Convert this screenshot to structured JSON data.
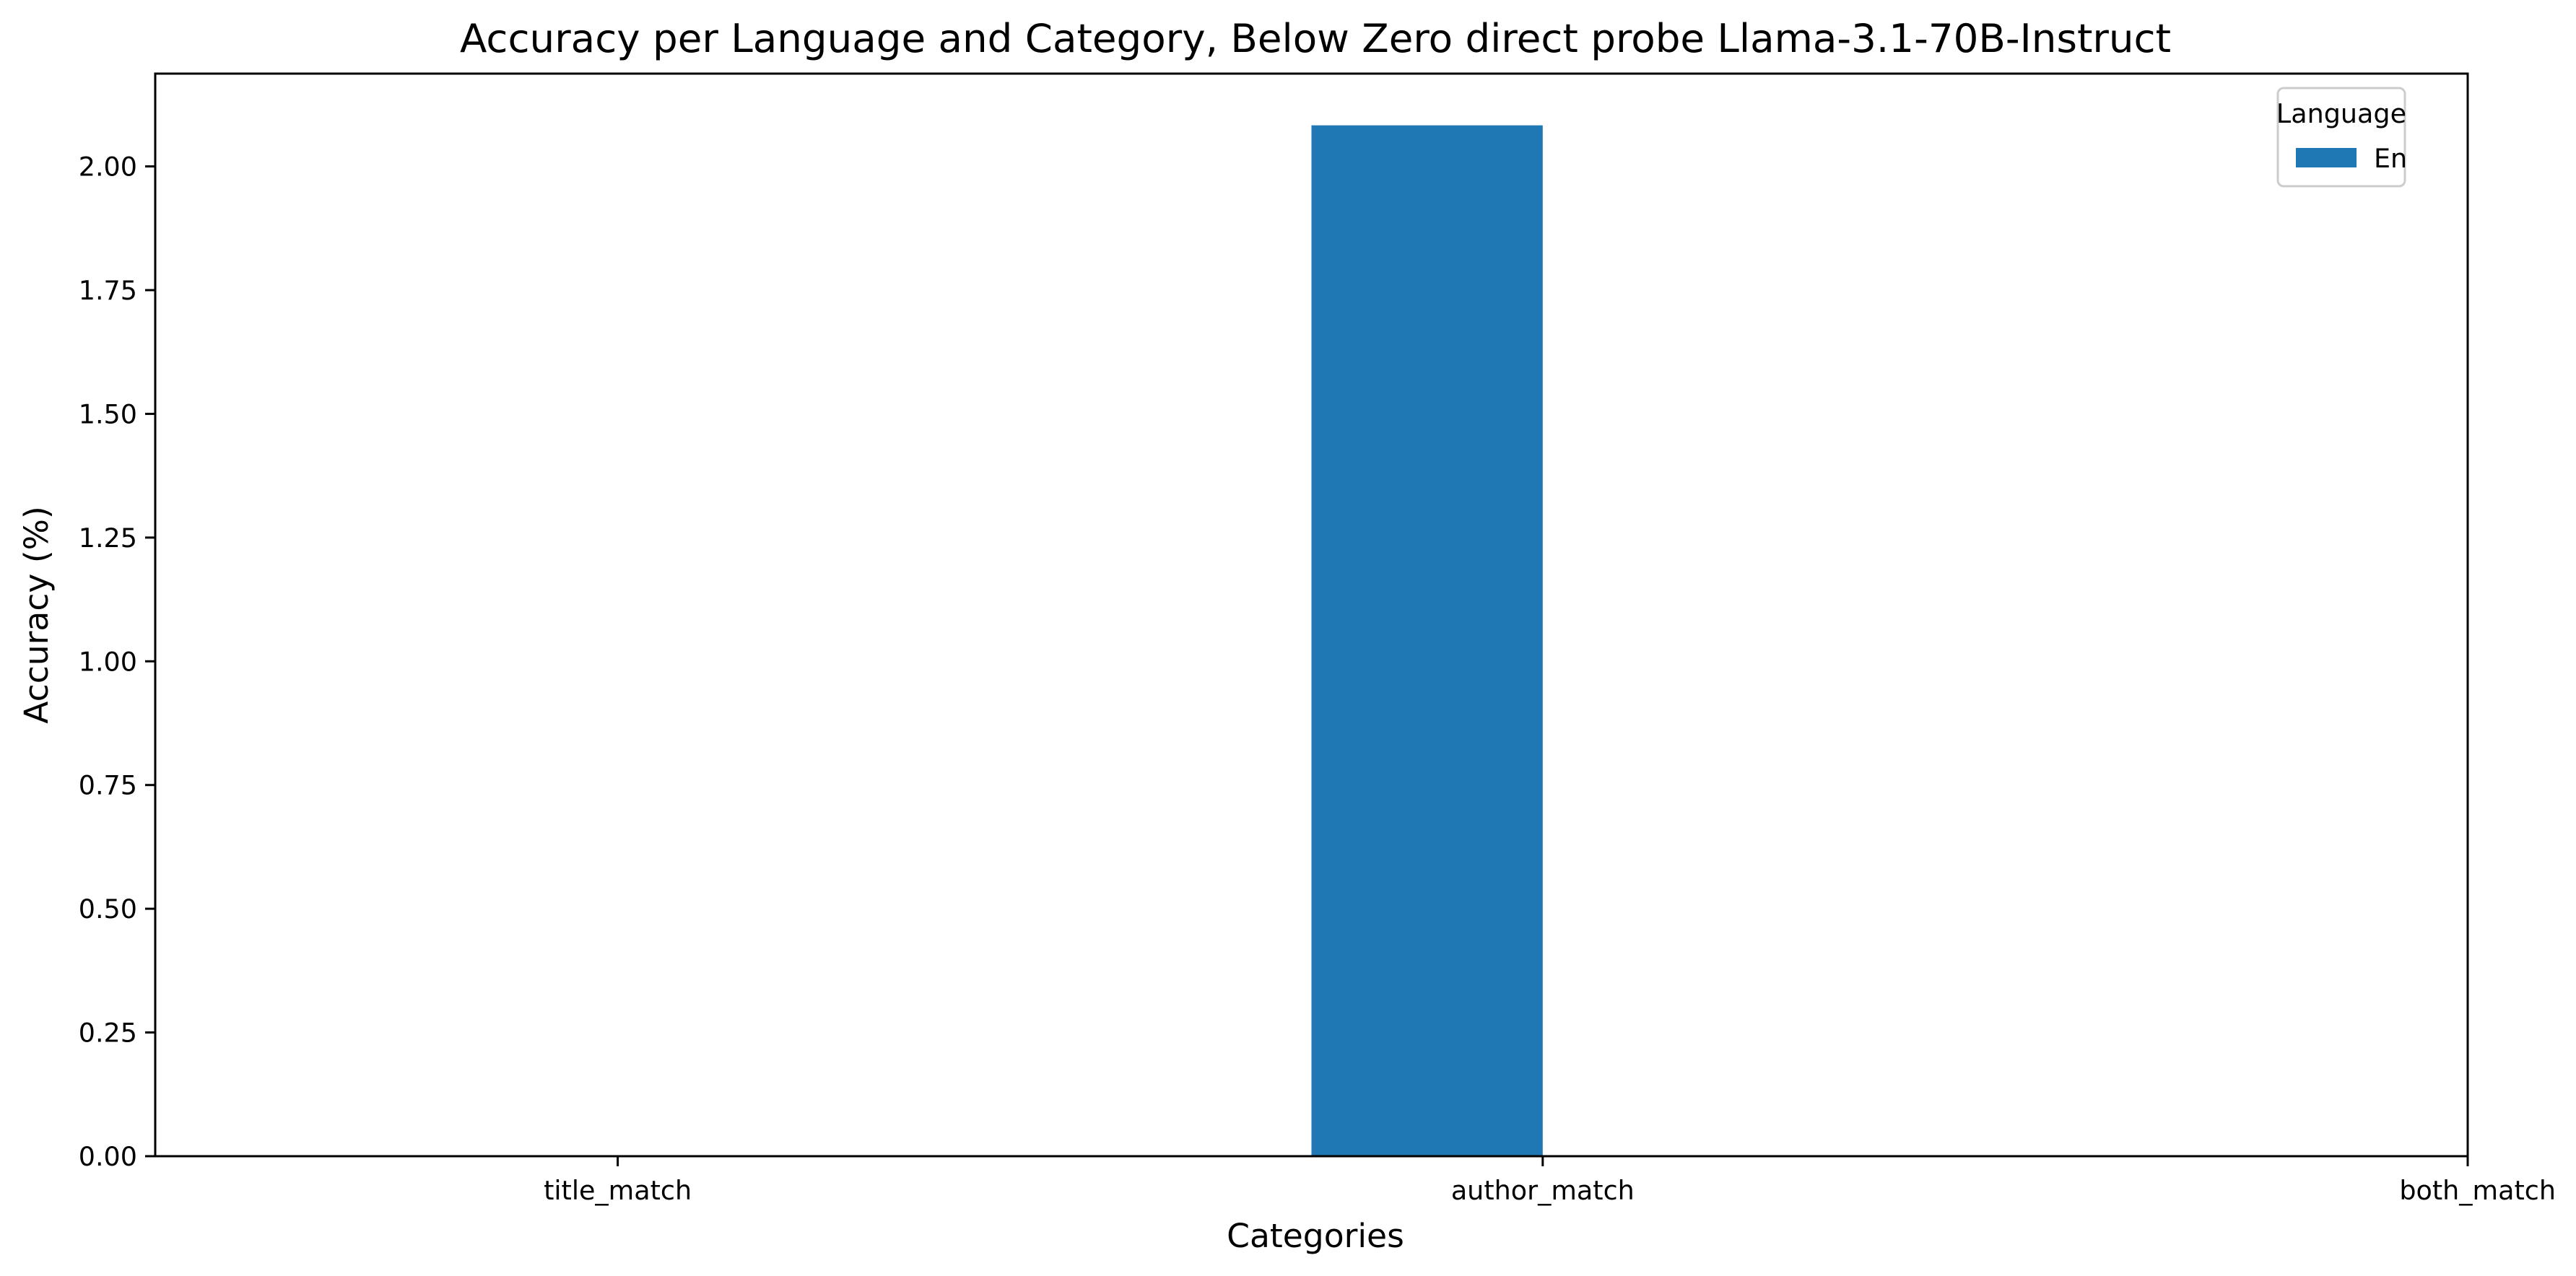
{
  "chart_data": {
    "type": "bar",
    "title": "Accuracy per Language and Category, Below Zero direct probe Llama-3.1-70B-Instruct",
    "xlabel": "Categories",
    "ylabel": "Accuracy (%)",
    "categories": [
      "title_match",
      "author_match",
      "both_match"
    ],
    "series": [
      {
        "name": "En",
        "color": "#1f77b4",
        "values": [
          0.0,
          2.083,
          0.0
        ]
      }
    ],
    "ylim": [
      0,
      2.1875
    ],
    "y_ticks": [
      0.0,
      0.25,
      0.5,
      0.75,
      1.0,
      1.25,
      1.5,
      1.75,
      2.0
    ],
    "y_tick_labels": [
      "0.00",
      "0.25",
      "0.50",
      "0.75",
      "1.00",
      "1.25",
      "1.50",
      "1.75",
      "2.00"
    ],
    "grid": false,
    "legend": {
      "title": "Language",
      "position": "top-right",
      "entries": [
        "En"
      ]
    }
  }
}
